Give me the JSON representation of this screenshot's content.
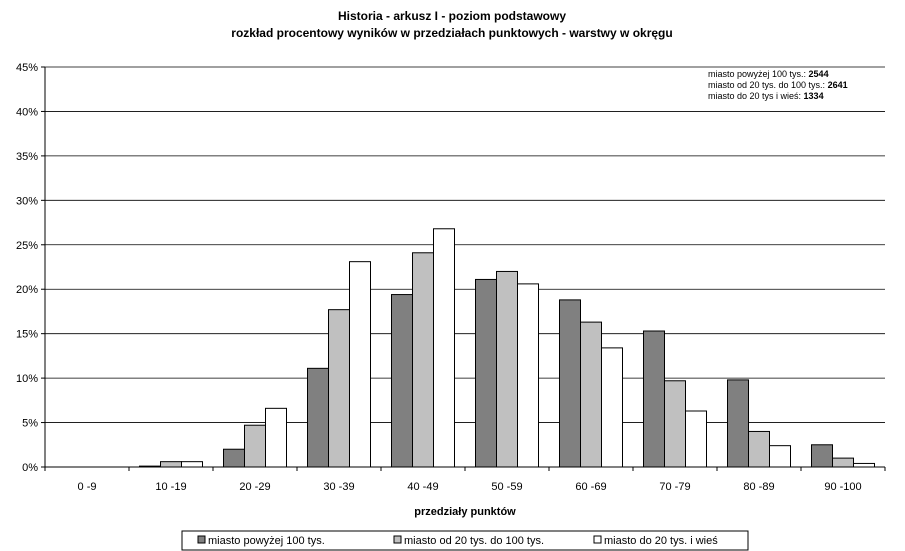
{
  "chart_data": {
    "type": "bar",
    "title": "Historia - arkusz I - poziom podstawowy",
    "subtitle": "rozkład procentowy wyników w przedziałach punktowych - warstwy w okręgu",
    "xlabel": "przedziały punktów",
    "ylabel": "",
    "ylim": [
      0,
      45
    ],
    "y_ticks": [
      "0%",
      "5%",
      "10%",
      "15%",
      "20%",
      "25%",
      "30%",
      "35%",
      "40%",
      "45%"
    ],
    "grid": true,
    "legend_position": "bottom",
    "categories": [
      "0 -9",
      "10 -19",
      "20 -29",
      "30 -39",
      "40 -49",
      "50 -59",
      "60 -69",
      "70 -79",
      "80 -89",
      "90 -100"
    ],
    "series": [
      {
        "name": "miasto powyżej 100 tys.",
        "color": "#808080",
        "values": [
          0.0,
          0.1,
          2.0,
          11.1,
          19.4,
          21.1,
          18.8,
          15.3,
          9.8,
          2.5
        ]
      },
      {
        "name": "miasto od 20 tys. do 100 tys.",
        "color": "#c0c0c0",
        "values": [
          0.0,
          0.6,
          4.7,
          17.7,
          24.1,
          22.0,
          16.3,
          9.7,
          4.0,
          1.0
        ]
      },
      {
        "name": "miasto do 20 tys i wieś",
        "color": "#ffffff",
        "values": [
          0.0,
          0.6,
          6.6,
          23.1,
          26.8,
          20.6,
          13.4,
          6.3,
          2.4,
          0.4
        ]
      }
    ],
    "info_box": [
      {
        "label": "miasto powyżej 100 tys.: ",
        "value": "2544"
      },
      {
        "label": "miasto od 20 tys. do 100 tys.: ",
        "value": "2641"
      },
      {
        "label": "miasto do 20 tys i wieś: ",
        "value": "1334"
      }
    ],
    "legend": [
      "miasto powyżej 100 tys.",
      "miasto od 20 tys. do 100 tys.",
      "miasto do 20 tys. i wieś"
    ]
  }
}
